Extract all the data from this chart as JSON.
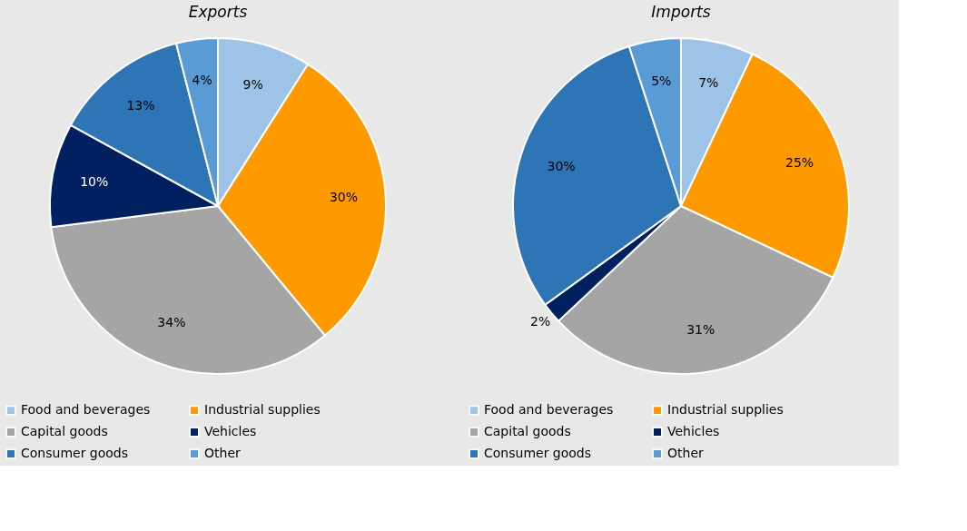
{
  "chart_data": [
    {
      "type": "pie",
      "title": "Exports",
      "categories": [
        "Food and beverages",
        "Industrial supplies",
        "Capital goods",
        "Vehicles",
        "Consumer goods",
        "Other"
      ],
      "values": [
        9,
        30,
        34,
        10,
        13,
        4
      ],
      "value_labels": [
        "9%",
        "30%",
        "34%",
        "10%",
        "13%",
        "4%"
      ],
      "colors": [
        "#9dc3e6",
        "#ff9900",
        "#a5a5a5",
        "#002060",
        "#2e75b6",
        "#5b9bd5"
      ],
      "legend": "bottom"
    },
    {
      "type": "pie",
      "title": "Imports",
      "categories": [
        "Food and beverages",
        "Industrial supplies",
        "Capital goods",
        "Vehicles",
        "Consumer goods",
        "Other"
      ],
      "values": [
        7,
        25,
        31,
        2,
        30,
        5
      ],
      "value_labels": [
        "7%",
        "25%",
        "31%",
        "2%",
        "30%",
        "5%"
      ],
      "colors": [
        "#9dc3e6",
        "#ff9900",
        "#a5a5a5",
        "#002060",
        "#2e75b6",
        "#5b9bd5"
      ],
      "legend": "bottom"
    }
  ]
}
